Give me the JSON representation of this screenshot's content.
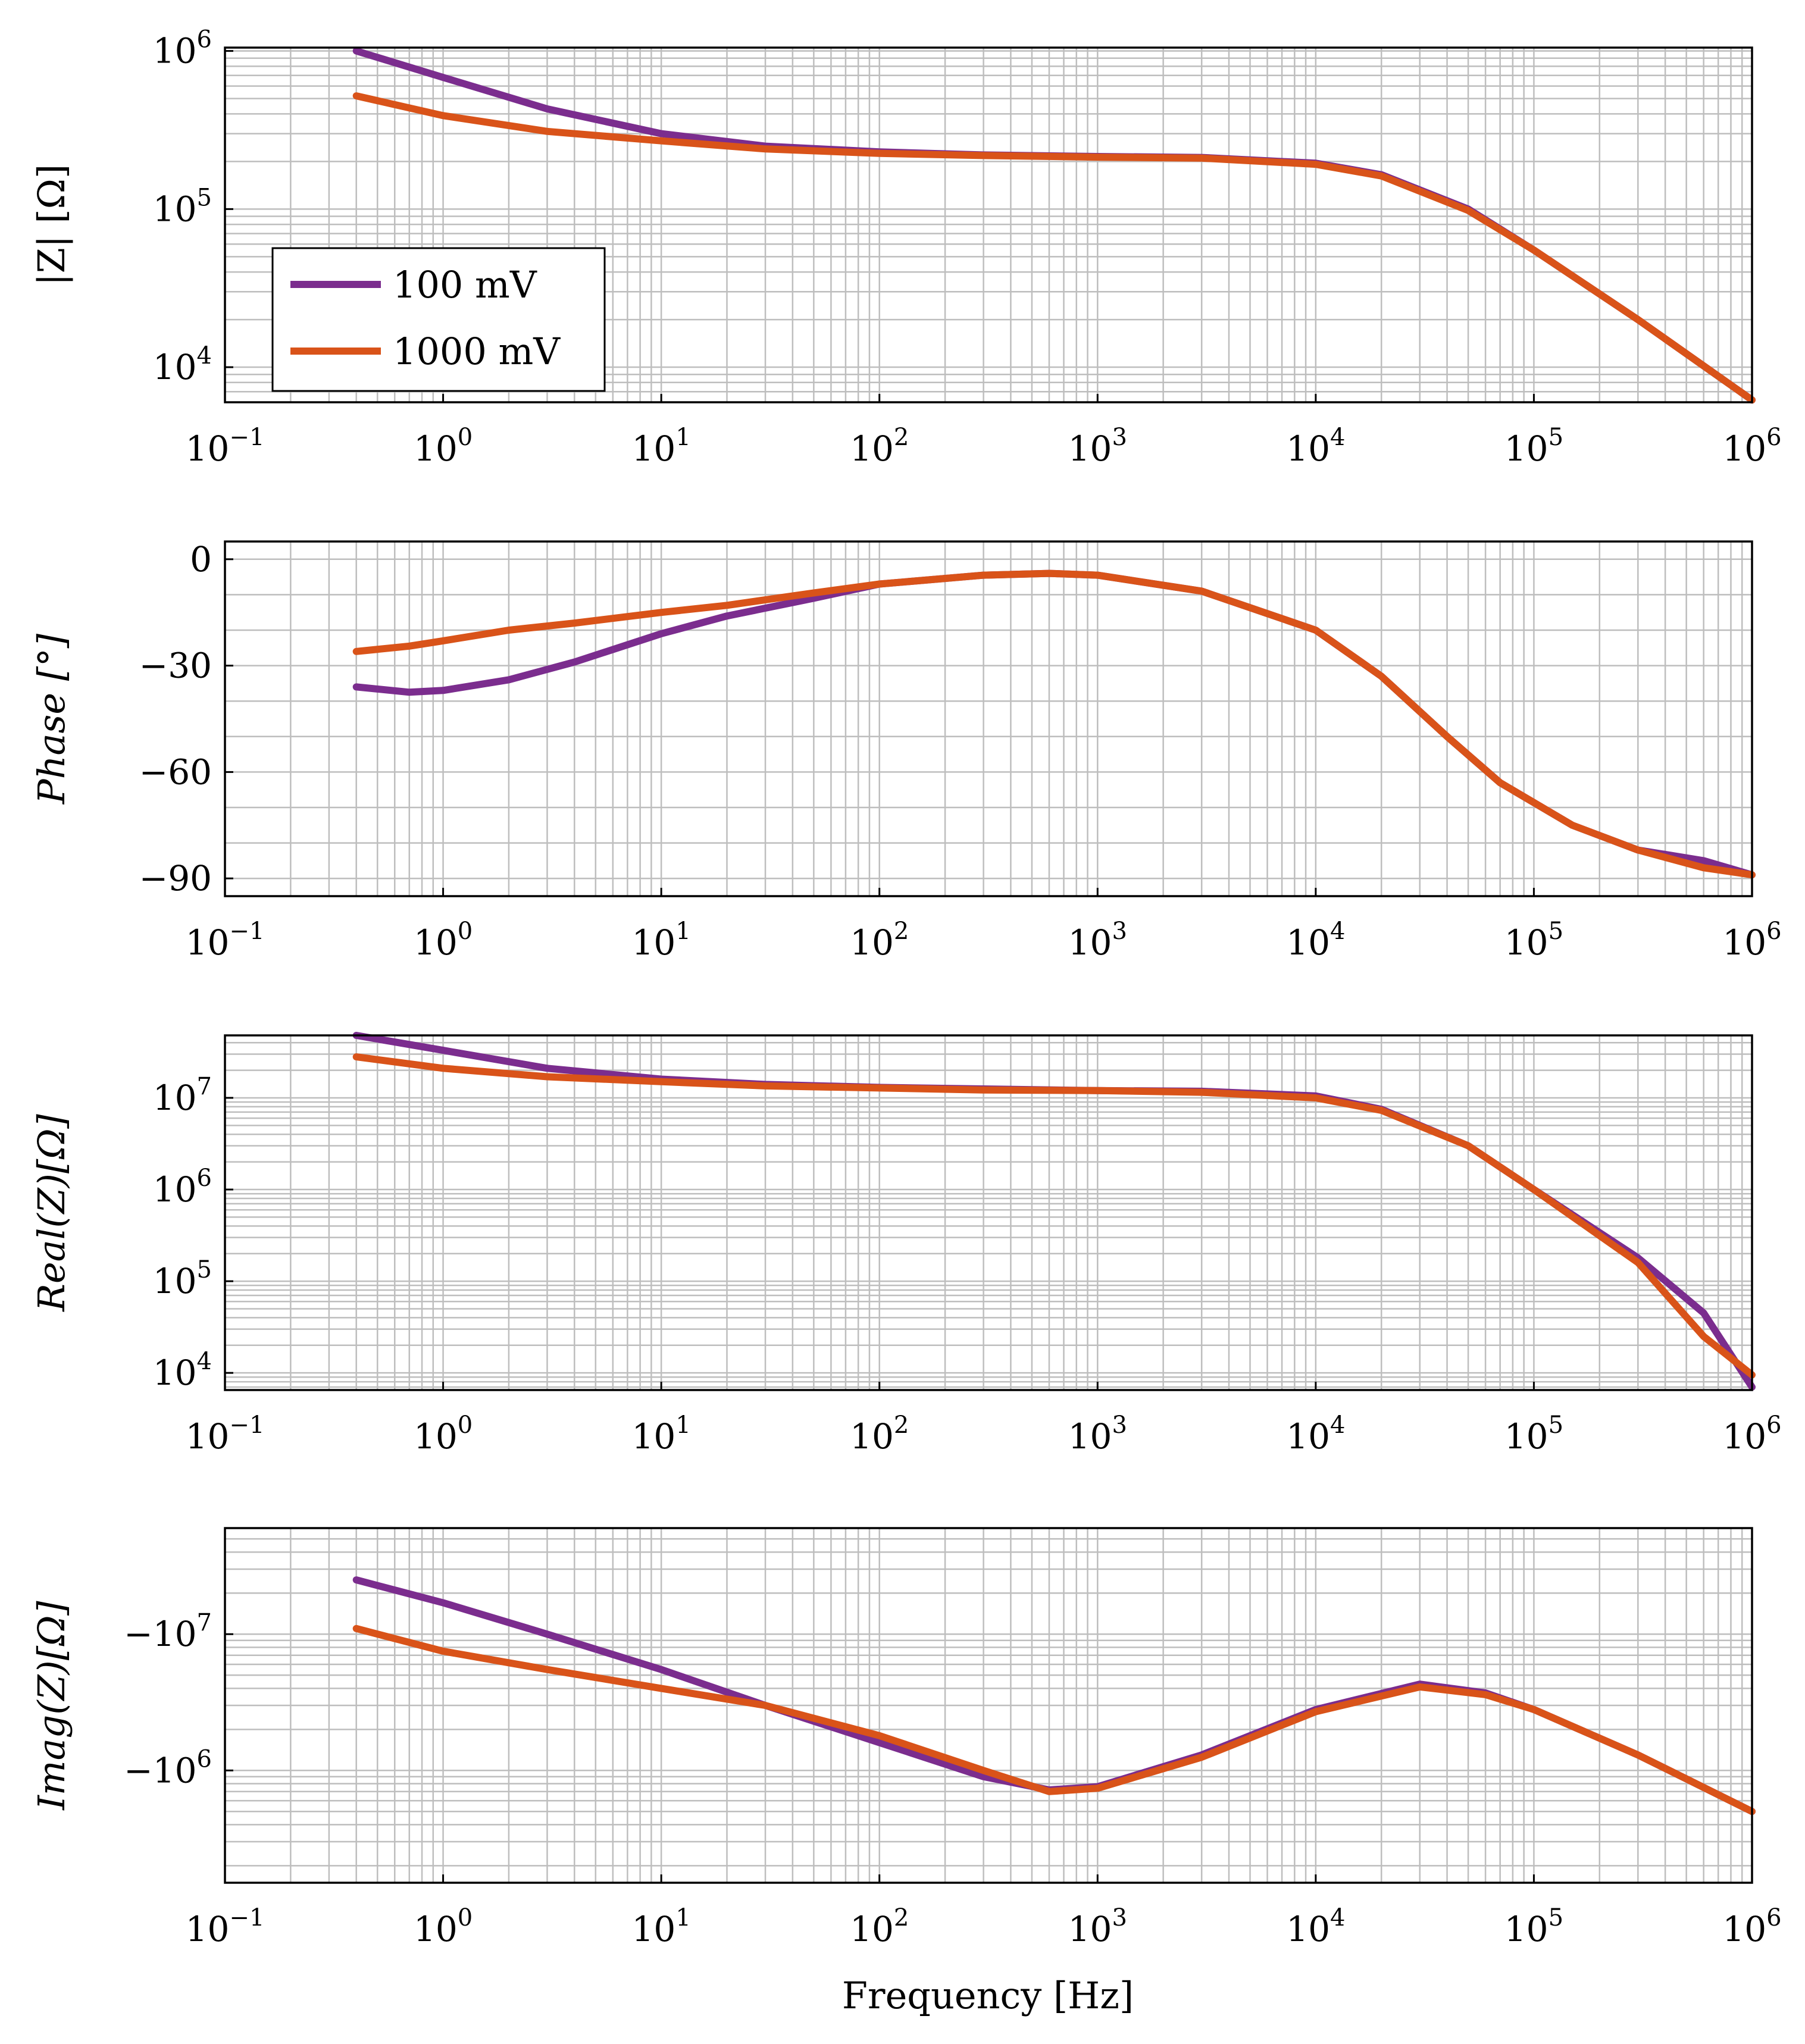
{
  "colors": {
    "purple": "#7B2D8E",
    "orange": "#D95319",
    "grid": "#BEBEBE",
    "axis": "#000000"
  },
  "legend": {
    "items": [
      {
        "label": "100 mV",
        "color": "#7B2D8E"
      },
      {
        "label": "1000 mV",
        "color": "#D95319"
      }
    ]
  },
  "xlabel": "Frequency [Hz]",
  "chart_data": [
    {
      "type": "line",
      "id": "magnitude",
      "title": "",
      "ylabel": "|Z| [Ω]",
      "xscale": "log",
      "yscale": "log",
      "xlim": [
        0.1,
        1000000
      ],
      "ylim": [
        6000,
        1050000
      ],
      "grid": true,
      "legend_position": "bottom-left",
      "xticks": [
        {
          "value": 0.1,
          "base": "10",
          "exp": "−1"
        },
        {
          "value": 1,
          "base": "10",
          "exp": "0"
        },
        {
          "value": 10,
          "base": "10",
          "exp": "1"
        },
        {
          "value": 100,
          "base": "10",
          "exp": "2"
        },
        {
          "value": 1000,
          "base": "10",
          "exp": "3"
        },
        {
          "value": 10000,
          "base": "10",
          "exp": "4"
        },
        {
          "value": 100000,
          "base": "10",
          "exp": "5"
        },
        {
          "value": 1000000,
          "base": "10",
          "exp": "6"
        }
      ],
      "yticks": [
        {
          "value": 10000,
          "base": "10",
          "exp": "4"
        },
        {
          "value": 100000,
          "base": "10",
          "exp": "5"
        },
        {
          "value": 1000000,
          "base": "10",
          "exp": "6"
        }
      ],
      "x": [
        0.4,
        1,
        3,
        10,
        30,
        100,
        300,
        1000,
        3000,
        10000,
        20000,
        50000,
        100000,
        300000,
        1000000
      ],
      "series": [
        {
          "name": "100 mV",
          "values": [
            1000000,
            680000,
            430000,
            300000,
            250000,
            230000,
            220000,
            215000,
            212000,
            195000,
            165000,
            100000,
            55000,
            20000,
            6200
          ]
        },
        {
          "name": "1000 mV",
          "values": [
            520000,
            390000,
            310000,
            270000,
            240000,
            225000,
            218000,
            213000,
            210000,
            192000,
            162000,
            98000,
            55000,
            20000,
            6200
          ]
        }
      ]
    },
    {
      "type": "line",
      "id": "phase",
      "title": "",
      "ylabel": "Phase [°]",
      "xscale": "log",
      "yscale": "linear",
      "xlim": [
        0.1,
        1000000
      ],
      "ylim": [
        -95,
        5
      ],
      "grid": true,
      "xticks": [
        {
          "value": 0.1,
          "base": "10",
          "exp": "−1"
        },
        {
          "value": 1,
          "base": "10",
          "exp": "0"
        },
        {
          "value": 10,
          "base": "10",
          "exp": "1"
        },
        {
          "value": 100,
          "base": "10",
          "exp": "2"
        },
        {
          "value": 1000,
          "base": "10",
          "exp": "3"
        },
        {
          "value": 10000,
          "base": "10",
          "exp": "4"
        },
        {
          "value": 100000,
          "base": "10",
          "exp": "5"
        },
        {
          "value": 1000000,
          "base": "10",
          "exp": "6"
        }
      ],
      "yticks": [
        {
          "value": 0,
          "label": "0"
        },
        {
          "value": -30,
          "label": "−30"
        },
        {
          "value": -60,
          "label": "−60"
        },
        {
          "value": -90,
          "label": "−90"
        }
      ],
      "x": [
        0.4,
        0.7,
        1,
        2,
        4,
        10,
        20,
        50,
        100,
        300,
        600,
        1000,
        3000,
        10000,
        20000,
        40000,
        70000,
        150000,
        300000,
        600000,
        1000000
      ],
      "series": [
        {
          "name": "100 mV",
          "values": [
            -36,
            -37.5,
            -37,
            -34,
            -29,
            -21,
            -16,
            -11,
            -7,
            -4.5,
            -4,
            -4.5,
            -9,
            -20,
            -33,
            -50,
            -63,
            -75,
            -82,
            -85,
            -89
          ]
        },
        {
          "name": "1000 mV",
          "values": [
            -26,
            -24.5,
            -23,
            -20,
            -18,
            -15,
            -13,
            -9.5,
            -7,
            -4.5,
            -4,
            -4.5,
            -9,
            -20,
            -33,
            -50,
            -63,
            -75,
            -82,
            -87,
            -89
          ]
        }
      ]
    },
    {
      "type": "line",
      "id": "real",
      "title": "",
      "ylabel": "Real(Z)[Ω]",
      "xscale": "log",
      "yscale": "log",
      "xlim": [
        0.1,
        1000000
      ],
      "ylim": [
        6500,
        48000000
      ],
      "grid": true,
      "xticks": [
        {
          "value": 0.1,
          "base": "10",
          "exp": "−1"
        },
        {
          "value": 1,
          "base": "10",
          "exp": "0"
        },
        {
          "value": 10,
          "base": "10",
          "exp": "1"
        },
        {
          "value": 100,
          "base": "10",
          "exp": "2"
        },
        {
          "value": 1000,
          "base": "10",
          "exp": "3"
        },
        {
          "value": 10000,
          "base": "10",
          "exp": "4"
        },
        {
          "value": 100000,
          "base": "10",
          "exp": "5"
        },
        {
          "value": 1000000,
          "base": "10",
          "exp": "6"
        }
      ],
      "yticks": [
        {
          "value": 10000,
          "base": "10",
          "exp": "4"
        },
        {
          "value": 100000,
          "base": "10",
          "exp": "5"
        },
        {
          "value": 1000000,
          "base": "10",
          "exp": "6"
        },
        {
          "value": 10000000,
          "base": "10",
          "exp": "7"
        }
      ],
      "x": [
        0.4,
        1,
        3,
        10,
        30,
        100,
        300,
        1000,
        3000,
        10000,
        20000,
        50000,
        100000,
        300000,
        600000,
        1000000
      ],
      "series": [
        {
          "name": "100 mV",
          "values": [
            48000000,
            33000000,
            21000000,
            16000000,
            14000000,
            13000000,
            12500000,
            12000000,
            11800000,
            10500000,
            7500000,
            3000000,
            1000000,
            180000,
            45000,
            7000
          ]
        },
        {
          "name": "1000 mV",
          "values": [
            28000000,
            21000000,
            17000000,
            15000000,
            13500000,
            12800000,
            12200000,
            12000000,
            11500000,
            10000000,
            7300000,
            3000000,
            1000000,
            160000,
            25000,
            9500
          ]
        }
      ]
    },
    {
      "type": "line",
      "id": "imaginary",
      "title": "",
      "ylabel": "Imag(Z)[Ω]",
      "xscale": "log",
      "yscale": "log-negative",
      "xlim": [
        0.1,
        1000000
      ],
      "ylim": [
        -60000000,
        -150000
      ],
      "grid": true,
      "xticks": [
        {
          "value": 0.1,
          "base": "10",
          "exp": "−1"
        },
        {
          "value": 1,
          "base": "10",
          "exp": "0"
        },
        {
          "value": 10,
          "base": "10",
          "exp": "1"
        },
        {
          "value": 100,
          "base": "10",
          "exp": "2"
        },
        {
          "value": 1000,
          "base": "10",
          "exp": "3"
        },
        {
          "value": 10000,
          "base": "10",
          "exp": "4"
        },
        {
          "value": 100000,
          "base": "10",
          "exp": "5"
        },
        {
          "value": 1000000,
          "base": "10",
          "exp": "6"
        }
      ],
      "yticks": [
        {
          "value": -10000000,
          "base": "−10",
          "exp": "7"
        },
        {
          "value": -1000000,
          "base": "−10",
          "exp": "6"
        }
      ],
      "x": [
        0.4,
        1,
        3,
        10,
        30,
        100,
        300,
        600,
        1000,
        3000,
        10000,
        30000,
        60000,
        100000,
        300000,
        1000000
      ],
      "series": [
        {
          "name": "100 mV",
          "values": [
            -25000000,
            -17000000,
            -10000000,
            -5500000,
            -3000000,
            -1600000,
            -900000,
            -720000,
            -760000,
            -1300000,
            -2800000,
            -4300000,
            -3700000,
            -2800000,
            -1300000,
            -500000
          ]
        },
        {
          "name": "1000 mV",
          "values": [
            -11000000,
            -7500000,
            -5500000,
            -4000000,
            -3000000,
            -1800000,
            -1000000,
            -700000,
            -740000,
            -1250000,
            -2700000,
            -4100000,
            -3600000,
            -2800000,
            -1300000,
            -500000
          ]
        }
      ]
    }
  ]
}
